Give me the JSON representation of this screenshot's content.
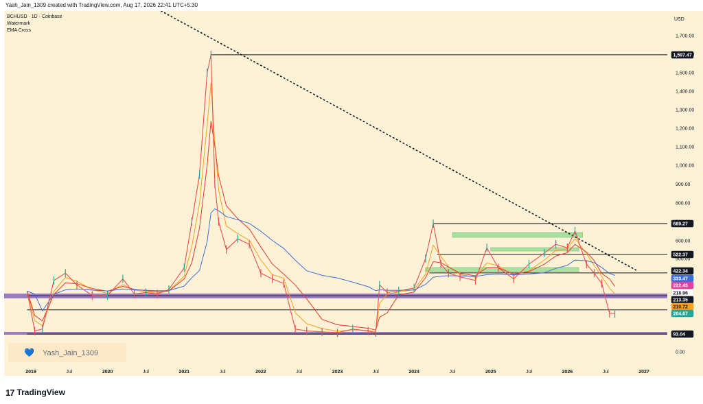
{
  "header": {
    "attribution": "Yash_Jain_1309 created with TradingView.com, Aug 17, 2026 22:41 UTC+5:30"
  },
  "legend": {
    "symbol_line": "BCHUSD · 1D · Coinbase",
    "indicator_1": "Watermark",
    "indicator_2": "EMA Cross"
  },
  "watermark": {
    "text": "Yash_Jain_1309",
    "icon": "blue-heart-icon"
  },
  "footer": {
    "brand": "TradingView",
    "logo_glyph": "17"
  },
  "colors": {
    "background": "#FDF2D6",
    "candle_up": "#26A69A",
    "candle_down": "#E84F4F",
    "ema_fast": "#F4A21E",
    "ema_slow": "#E5392B",
    "ema_long": "#3D6CD6",
    "purple_band": "#9B7CC4",
    "green_zone": "#A9DFA0"
  },
  "chart_data": {
    "type": "line",
    "title": "BCHUSD · 1D · Coinbase",
    "currency_label": "USD",
    "y_ticks": [
      "1,700.00",
      "1,600.00",
      "1,500.00",
      "1,400.00",
      "1,300.00",
      "1,200.00",
      "1,100.00",
      "1,000.00",
      "900.00",
      "800.00",
      "700.00",
      "600.00",
      "500.00",
      "0.00"
    ],
    "x_ticks": [
      "2019",
      "Jul",
      "2020",
      "Jul",
      "2021",
      "Jul",
      "2022",
      "Jul",
      "2023",
      "Jul",
      "2024",
      "Jul",
      "2025",
      "Jul",
      "2026",
      "Jul",
      "2027"
    ],
    "x_tick_dates": [
      2019.0,
      2019.5,
      2020.0,
      2020.5,
      2021.0,
      2021.5,
      2022.0,
      2022.5,
      2023.0,
      2023.5,
      2024.0,
      2024.5,
      2025.0,
      2025.5,
      2026.0,
      2026.5,
      2027.0
    ],
    "series": [
      {
        "name": "BCHUSD",
        "x": [
          2018.95,
          2019.05,
          2019.15,
          2019.3,
          2019.45,
          2019.6,
          2019.8,
          2020.0,
          2020.2,
          2020.35,
          2020.5,
          2020.65,
          2020.8,
          2021.0,
          2021.1,
          2021.2,
          2021.3,
          2021.35,
          2021.4,
          2021.45,
          2021.55,
          2021.7,
          2021.85,
          2022.0,
          2022.15,
          2022.3,
          2022.45,
          2022.6,
          2022.8,
          2023.0,
          2023.2,
          2023.4,
          2023.5,
          2023.55,
          2023.65,
          2023.8,
          2024.0,
          2024.15,
          2024.25,
          2024.35,
          2024.45,
          2024.6,
          2024.8,
          2024.95,
          2025.1,
          2025.3,
          2025.5,
          2025.7,
          2025.85,
          2026.0,
          2026.1,
          2026.25,
          2026.35,
          2026.45,
          2026.55,
          2026.62
        ],
        "y": [
          250,
          110,
          120,
          320,
          420,
          290,
          220,
          220,
          330,
          230,
          240,
          230,
          260,
          450,
          700,
          950,
          1500,
          1597,
          900,
          700,
          550,
          610,
          580,
          420,
          330,
          300,
          120,
          110,
          105,
          100,
          120,
          110,
          100,
          290,
          240,
          250,
          270,
          500,
          689,
          470,
          420,
          360,
          320,
          560,
          450,
          330,
          470,
          530,
          580,
          560,
          650,
          470,
          420,
          300,
          205,
          205
        ]
      }
    ],
    "horizontal_levels": [
      "1,597.47",
      "689.27",
      "522.37",
      "422.34",
      "218.96",
      "213.35",
      "93.04"
    ],
    "price_tags": [
      {
        "label": "1,597.47",
        "color": "#131722",
        "text_color": "#FFFFFF"
      },
      {
        "label": "689.27",
        "color": "#131722",
        "text_color": "#FFFFFF"
      },
      {
        "label": "522.37",
        "color": "#131722",
        "text_color": "#FFFFFF"
      },
      {
        "label": "422.34",
        "color": "#131722",
        "text_color": "#FFFFFF"
      },
      {
        "label": "333.47",
        "color": "#3D6CD6",
        "text_color": "#FFFFFF"
      },
      {
        "label": "222.45",
        "color": "#E040A0",
        "text_color": "#FFFFFF"
      },
      {
        "label": "218.96",
        "color": "#FFFFFF",
        "text_color": "#131722"
      },
      {
        "label": "213.35",
        "color": "#131722",
        "text_color": "#FFFFFF"
      },
      {
        "label": "210.72",
        "color": "#F4A21E",
        "text_color": "#131722"
      },
      {
        "label": "204.67",
        "color": "#26A69A",
        "text_color": "#FFFFFF"
      },
      {
        "label": "93.04",
        "color": "#131722",
        "text_color": "#FFFFFF"
      }
    ],
    "grid": false,
    "trendline": "dotted descending from 2020.7 to 2026.9",
    "legend_position": "top-left"
  }
}
